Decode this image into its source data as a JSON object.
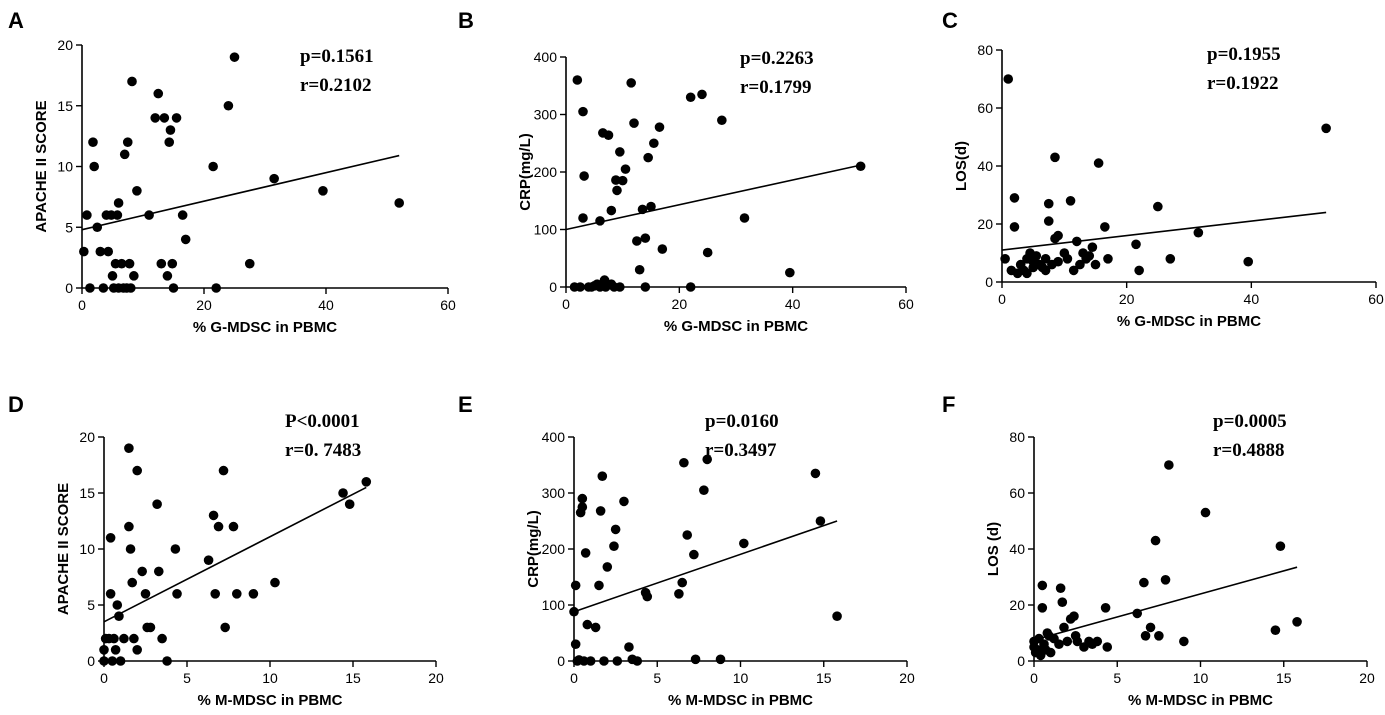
{
  "figure": {
    "title": "",
    "colors": {
      "points": "#000000",
      "lines": "#000000",
      "background": "#ffffff"
    }
  },
  "chart_data": [
    {
      "panel": "A",
      "type": "scatter",
      "xlabel": "% G-MDSC in PBMC",
      "ylabel": "APACHE II SCORE",
      "xlim": [
        0,
        60
      ],
      "ylim": [
        0,
        20
      ],
      "xticks": [
        0,
        20,
        40,
        60
      ],
      "yticks": [
        0,
        5,
        10,
        15,
        20
      ],
      "annotations": {
        "p": "p=0.1561",
        "r": "r=0.2102"
      },
      "fit": {
        "x0": 0,
        "y0": 4.8,
        "x1": 52,
        "y1": 10.9
      },
      "points": [
        [
          0.3,
          3
        ],
        [
          0.8,
          6
        ],
        [
          1.3,
          0
        ],
        [
          1.8,
          12
        ],
        [
          2,
          10
        ],
        [
          2.5,
          5
        ],
        [
          3,
          3
        ],
        [
          3.5,
          0
        ],
        [
          4,
          6
        ],
        [
          4.3,
          3
        ],
        [
          4.8,
          6
        ],
        [
          5,
          1
        ],
        [
          5.2,
          0
        ],
        [
          5.5,
          2
        ],
        [
          5.8,
          6
        ],
        [
          6,
          7
        ],
        [
          6,
          0
        ],
        [
          6.5,
          2
        ],
        [
          6.8,
          0
        ],
        [
          7,
          11
        ],
        [
          7.3,
          0
        ],
        [
          7.5,
          12
        ],
        [
          7.8,
          2
        ],
        [
          8,
          0
        ],
        [
          8.2,
          17
        ],
        [
          8.5,
          1
        ],
        [
          9,
          8
        ],
        [
          11,
          6
        ],
        [
          12,
          14
        ],
        [
          12.5,
          16
        ],
        [
          13,
          2
        ],
        [
          13.5,
          14
        ],
        [
          14,
          1
        ],
        [
          14.3,
          12
        ],
        [
          14.5,
          13
        ],
        [
          14.8,
          2
        ],
        [
          15,
          0
        ],
        [
          15.5,
          14
        ],
        [
          16.5,
          6
        ],
        [
          17,
          4
        ],
        [
          21.5,
          10
        ],
        [
          22,
          0
        ],
        [
          24,
          15
        ],
        [
          25,
          19
        ],
        [
          27.5,
          2
        ],
        [
          31.5,
          9
        ],
        [
          39.5,
          8
        ],
        [
          52,
          7
        ]
      ]
    },
    {
      "panel": "B",
      "type": "scatter",
      "xlabel": "% G-MDSC in PBMC",
      "ylabel": "CRP(mg/L)",
      "xlim": [
        0,
        60
      ],
      "ylim": [
        0,
        400
      ],
      "xticks": [
        0,
        20,
        40,
        60
      ],
      "yticks": [
        0,
        100,
        200,
        300,
        400
      ],
      "annotations": {
        "p": "p=0.2263",
        "r": "r=0.1799"
      },
      "fit": {
        "x0": 0,
        "y0": 100,
        "x1": 52,
        "y1": 212
      },
      "points": [
        [
          1.5,
          0
        ],
        [
          2,
          360
        ],
        [
          2.5,
          0
        ],
        [
          3,
          305
        ],
        [
          3,
          120
        ],
        [
          3.2,
          193
        ],
        [
          4,
          0
        ],
        [
          4.5,
          0
        ],
        [
          5,
          2
        ],
        [
          5.5,
          5
        ],
        [
          6,
          0
        ],
        [
          6,
          115
        ],
        [
          6.5,
          268
        ],
        [
          6.8,
          12
        ],
        [
          7,
          0
        ],
        [
          7.5,
          264
        ],
        [
          8,
          5
        ],
        [
          8,
          133
        ],
        [
          8.5,
          0
        ],
        [
          8.8,
          186
        ],
        [
          9,
          168
        ],
        [
          9.5,
          0
        ],
        [
          9.5,
          235
        ],
        [
          10,
          185
        ],
        [
          10.5,
          205
        ],
        [
          11.5,
          355
        ],
        [
          12,
          285
        ],
        [
          12.5,
          80
        ],
        [
          13,
          30
        ],
        [
          13.5,
          135
        ],
        [
          14,
          85
        ],
        [
          14,
          0
        ],
        [
          14.5,
          225
        ],
        [
          15,
          140
        ],
        [
          15.5,
          250
        ],
        [
          16.5,
          278
        ],
        [
          17,
          66
        ],
        [
          22,
          330
        ],
        [
          22,
          0
        ],
        [
          24,
          335
        ],
        [
          25,
          60
        ],
        [
          27.5,
          290
        ],
        [
          31.5,
          120
        ],
        [
          39.5,
          25
        ],
        [
          52,
          210
        ]
      ]
    },
    {
      "panel": "C",
      "type": "scatter",
      "xlabel": "% G-MDSC in PBMC",
      "ylabel": "LOS(d)",
      "xlim": [
        0,
        60
      ],
      "ylim": [
        0,
        80
      ],
      "xticks": [
        0,
        20,
        40,
        60
      ],
      "yticks": [
        0,
        20,
        40,
        60,
        80
      ],
      "annotations": {
        "p": "p=0.1955",
        "r": "r=0.1922"
      },
      "fit": {
        "x0": 0,
        "y0": 11,
        "x1": 52,
        "y1": 24
      },
      "points": [
        [
          0.5,
          8
        ],
        [
          1,
          70
        ],
        [
          1.5,
          4
        ],
        [
          2,
          29
        ],
        [
          2,
          19
        ],
        [
          2.5,
          3
        ],
        [
          3,
          6
        ],
        [
          3.5,
          4
        ],
        [
          4,
          8
        ],
        [
          4,
          3
        ],
        [
          4.5,
          10
        ],
        [
          5,
          7
        ],
        [
          5,
          5
        ],
        [
          5.5,
          9
        ],
        [
          6,
          6
        ],
        [
          6.5,
          5
        ],
        [
          7,
          4
        ],
        [
          7,
          8
        ],
        [
          7.5,
          27
        ],
        [
          7.5,
          21
        ],
        [
          8,
          6
        ],
        [
          8.5,
          43
        ],
        [
          8.5,
          15
        ],
        [
          9,
          7
        ],
        [
          9,
          16
        ],
        [
          10,
          10
        ],
        [
          10.5,
          8
        ],
        [
          11,
          28
        ],
        [
          11.5,
          4
        ],
        [
          12,
          14
        ],
        [
          12.5,
          6
        ],
        [
          13,
          10
        ],
        [
          13.5,
          8
        ],
        [
          14,
          9
        ],
        [
          14.5,
          12
        ],
        [
          15,
          6
        ],
        [
          15.5,
          41
        ],
        [
          16.5,
          19
        ],
        [
          17,
          8
        ],
        [
          21.5,
          13
        ],
        [
          22,
          4
        ],
        [
          25,
          26
        ],
        [
          27,
          8
        ],
        [
          31.5,
          17
        ],
        [
          39.5,
          7
        ],
        [
          52,
          53
        ]
      ]
    },
    {
      "panel": "D",
      "type": "scatter",
      "xlabel": "% M-MDSC in PBMC",
      "ylabel": "APACHE II SCORE",
      "xlim": [
        0,
        20
      ],
      "ylim": [
        0,
        20
      ],
      "xticks": [
        0,
        5,
        10,
        15,
        20
      ],
      "yticks": [
        0,
        5,
        10,
        15,
        20
      ],
      "annotations": {
        "p": "P<0.0001",
        "r": "r=0. 7483"
      },
      "fit": {
        "x0": 0,
        "y0": 3.5,
        "x1": 15.8,
        "y1": 15.5
      },
      "points": [
        [
          0,
          1
        ],
        [
          0,
          0
        ],
        [
          0.1,
          2
        ],
        [
          0.3,
          2
        ],
        [
          0.4,
          11
        ],
        [
          0.4,
          6
        ],
        [
          0.5,
          0
        ],
        [
          0.6,
          2
        ],
        [
          0.7,
          1
        ],
        [
          0.8,
          5
        ],
        [
          0.9,
          4
        ],
        [
          1,
          0
        ],
        [
          1.2,
          2
        ],
        [
          1.5,
          19
        ],
        [
          1.5,
          12
        ],
        [
          1.6,
          10
        ],
        [
          1.7,
          7
        ],
        [
          1.8,
          2
        ],
        [
          2,
          17
        ],
        [
          2,
          1
        ],
        [
          2.3,
          8
        ],
        [
          2.5,
          6
        ],
        [
          2.6,
          3
        ],
        [
          2.8,
          3
        ],
        [
          3.2,
          14
        ],
        [
          3.3,
          8
        ],
        [
          3.5,
          2
        ],
        [
          3.8,
          0
        ],
        [
          4.3,
          10
        ],
        [
          4.4,
          6
        ],
        [
          6.3,
          9
        ],
        [
          6.6,
          13
        ],
        [
          6.7,
          6
        ],
        [
          6.9,
          12
        ],
        [
          7.2,
          17
        ],
        [
          7.3,
          3
        ],
        [
          7.8,
          12
        ],
        [
          8,
          6
        ],
        [
          9,
          6
        ],
        [
          10.3,
          7
        ],
        [
          14.4,
          15
        ],
        [
          14.8,
          14
        ],
        [
          15.8,
          16
        ]
      ]
    },
    {
      "panel": "E",
      "type": "scatter",
      "xlabel": "% M-MDSC in PBMC",
      "ylabel": "CRP(mg/L)",
      "xlim": [
        0,
        20
      ],
      "ylim": [
        0,
        400
      ],
      "xticks": [
        0,
        5,
        10,
        15,
        20
      ],
      "yticks": [
        0,
        100,
        200,
        300,
        400
      ],
      "annotations": {
        "p": "p=0.0160",
        "r": "r=0.3497"
      },
      "fit": {
        "x0": 0,
        "y0": 88,
        "x1": 15.8,
        "y1": 250
      },
      "points": [
        [
          0,
          88
        ],
        [
          0.1,
          135
        ],
        [
          0.1,
          30
        ],
        [
          0.2,
          0
        ],
        [
          0.3,
          2
        ],
        [
          0.4,
          265
        ],
        [
          0.5,
          290
        ],
        [
          0.5,
          275
        ],
        [
          0.6,
          0
        ],
        [
          0.7,
          193
        ],
        [
          0.8,
          65
        ],
        [
          1,
          0
        ],
        [
          1.3,
          60
        ],
        [
          1.5,
          135
        ],
        [
          1.6,
          268
        ],
        [
          1.7,
          330
        ],
        [
          1.8,
          0
        ],
        [
          2,
          168
        ],
        [
          2.4,
          205
        ],
        [
          2.5,
          235
        ],
        [
          2.6,
          0
        ],
        [
          3,
          285
        ],
        [
          3.3,
          25
        ],
        [
          3.5,
          3
        ],
        [
          3.8,
          0
        ],
        [
          4.3,
          122
        ],
        [
          4.4,
          115
        ],
        [
          6.3,
          120
        ],
        [
          6.5,
          140
        ],
        [
          6.6,
          354
        ],
        [
          6.8,
          225
        ],
        [
          7.2,
          190
        ],
        [
          7.3,
          3
        ],
        [
          7.8,
          305
        ],
        [
          8,
          360
        ],
        [
          8.8,
          3
        ],
        [
          10.2,
          210
        ],
        [
          14.5,
          335
        ],
        [
          14.8,
          250
        ],
        [
          15.8,
          80
        ]
      ]
    },
    {
      "panel": "F",
      "type": "scatter",
      "xlabel": "% M-MDSC in PBMC",
      "ylabel": "LOS (d)",
      "xlim": [
        0,
        20
      ],
      "ylim": [
        0,
        80
      ],
      "xticks": [
        0,
        5,
        10,
        15,
        20
      ],
      "yticks": [
        0,
        20,
        40,
        60,
        80
      ],
      "annotations": {
        "p": "p=0.0005",
        "r": "r=0.4888"
      },
      "fit": {
        "x0": 0,
        "y0": 7.5,
        "x1": 15.8,
        "y1": 33.5
      },
      "points": [
        [
          0,
          5
        ],
        [
          0,
          7
        ],
        [
          0.1,
          3
        ],
        [
          0.2,
          4
        ],
        [
          0.3,
          8
        ],
        [
          0.4,
          2
        ],
        [
          0.5,
          27
        ],
        [
          0.5,
          19
        ],
        [
          0.6,
          6
        ],
        [
          0.7,
          4
        ],
        [
          0.8,
          10
        ],
        [
          0.9,
          9
        ],
        [
          1,
          3
        ],
        [
          1.2,
          8
        ],
        [
          1.5,
          6
        ],
        [
          1.6,
          26
        ],
        [
          1.7,
          21
        ],
        [
          1.8,
          12
        ],
        [
          2,
          7
        ],
        [
          2.2,
          15
        ],
        [
          2.4,
          16
        ],
        [
          2.5,
          9
        ],
        [
          2.6,
          7
        ],
        [
          3,
          5
        ],
        [
          3.3,
          7
        ],
        [
          3.5,
          6
        ],
        [
          3.8,
          7
        ],
        [
          4.3,
          19
        ],
        [
          4.4,
          5
        ],
        [
          6.2,
          17
        ],
        [
          6.6,
          28
        ],
        [
          6.7,
          9
        ],
        [
          7,
          12
        ],
        [
          7.3,
          43
        ],
        [
          7.5,
          9
        ],
        [
          7.9,
          29
        ],
        [
          8.1,
          70
        ],
        [
          9,
          7
        ],
        [
          10.3,
          53
        ],
        [
          14.5,
          11
        ],
        [
          14.8,
          41
        ],
        [
          15.8,
          14
        ]
      ]
    }
  ]
}
